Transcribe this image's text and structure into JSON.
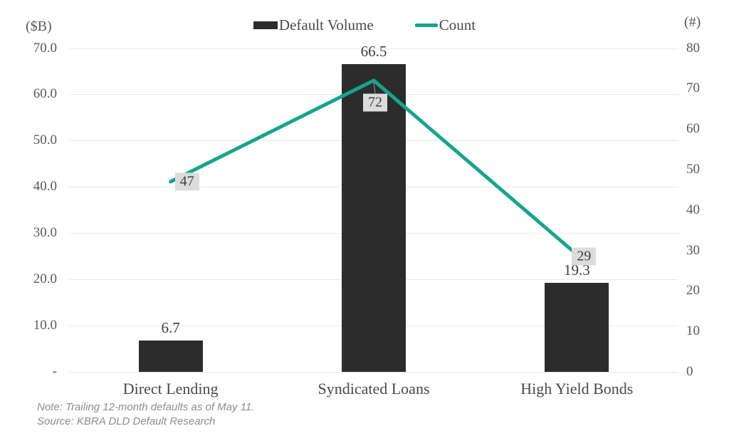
{
  "chart_data": {
    "type": "bar",
    "subtype": "bar+line combo, dual axis",
    "categories": [
      "Direct Lending",
      "Syndicated Loans",
      "High Yield Bonds"
    ],
    "series": [
      {
        "name": "Default Volume",
        "type": "bar",
        "axis": "left",
        "values": [
          6.7,
          66.5,
          19.3
        ],
        "labels": [
          "6.7",
          "66.5",
          "19.3"
        ],
        "color": "#2d2c2c"
      },
      {
        "name": "Count",
        "type": "line",
        "axis": "right",
        "values": [
          47,
          72,
          29
        ],
        "labels": [
          "47",
          "72",
          "29"
        ],
        "color": "#16a48b"
      }
    ],
    "left_axis": {
      "unit_label": "($B)",
      "min": 0,
      "max": 70,
      "ticks": [
        {
          "value": 70,
          "label": "70.0"
        },
        {
          "value": 60,
          "label": "60.0"
        },
        {
          "value": 50,
          "label": "50.0"
        },
        {
          "value": 40,
          "label": "40.0"
        },
        {
          "value": 30,
          "label": "30.0"
        },
        {
          "value": 20,
          "label": "20.0"
        },
        {
          "value": 10,
          "label": "10.0"
        },
        {
          "value": 0,
          "label": "-"
        }
      ]
    },
    "right_axis": {
      "unit_label": "(#)",
      "min": 0,
      "max": 80,
      "ticks": [
        {
          "value": 80,
          "label": "80"
        },
        {
          "value": 70,
          "label": "70"
        },
        {
          "value": 60,
          "label": "60"
        },
        {
          "value": 50,
          "label": "50"
        },
        {
          "value": 40,
          "label": "40"
        },
        {
          "value": 30,
          "label": "30"
        },
        {
          "value": 20,
          "label": "20"
        },
        {
          "value": 10,
          "label": "10"
        },
        {
          "value": 0,
          "label": "0"
        }
      ]
    },
    "legend": [
      {
        "label": "Default Volume",
        "swatch": "bar",
        "color": "#2d2c2c"
      },
      {
        "label": "Count",
        "swatch": "line",
        "color": "#16a48b"
      }
    ],
    "grid": true,
    "legend_position": "top-center"
  },
  "notes": {
    "note": "Note: Trailing 12-month defaults as of May 11.",
    "source": "Source: KBRA DLD Default Research"
  },
  "colors": {
    "bar": "#2d2c2c",
    "line": "#16a48b",
    "grid": "#e8e8e8",
    "axis_text": "#595959",
    "label_box_bg": "#dcdcdc",
    "label_box_text": "#3d3d3d",
    "note_text": "#8c8c8c"
  }
}
